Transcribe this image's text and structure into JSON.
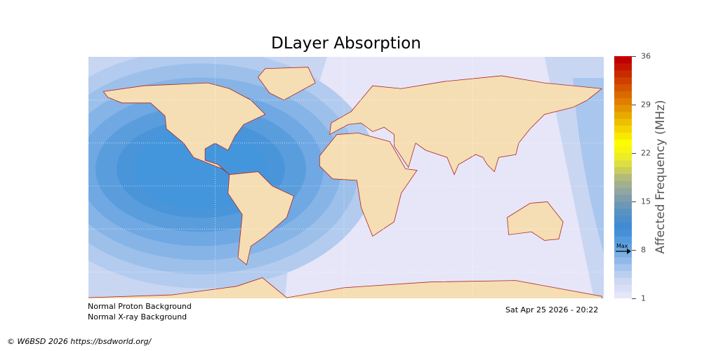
{
  "title": "DLayer Absorption",
  "colorbar": {
    "label": "Affected Frequency (MHz)",
    "ticks": [
      "36",
      "29",
      "22",
      "15",
      "8",
      "1"
    ],
    "range": [
      1,
      36
    ],
    "max_marker_label": "Max",
    "max_value": 8,
    "color_stops": [
      "#e6e6f8",
      "#c8d6f2",
      "#92bbe8",
      "#5ea1e0",
      "#3b8bd6",
      "#5b93bf",
      "#8aa1a8",
      "#b3bb7a",
      "#e6e633",
      "#ffff00",
      "#f2cf00",
      "#e59a00",
      "#d96600",
      "#cc3300",
      "#c00000"
    ]
  },
  "map": {
    "ocean_color": "#e6e6f8",
    "land_color": "#f5deb3",
    "coast_color": "#b22222",
    "absorption_levels_shown": [
      2,
      3,
      4,
      5,
      6,
      7,
      8
    ]
  },
  "footer": {
    "proton": "Normal Proton Background",
    "xray": "Normal X-ray Background",
    "timestamp": "Sat Apr 25 2026 - 20:22",
    "copyright": "© W6BSD 2026 https://bsdworld.org/"
  }
}
